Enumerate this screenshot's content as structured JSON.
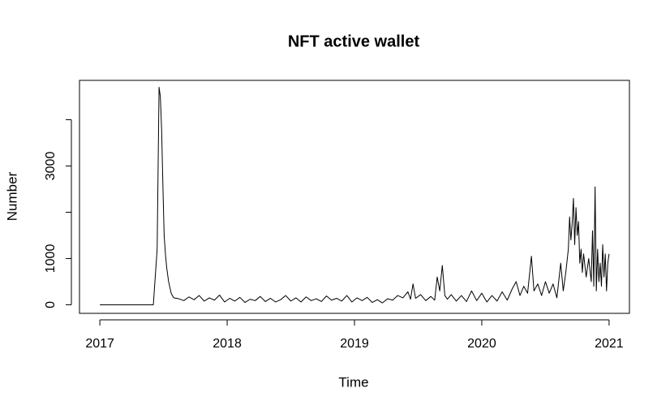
{
  "chart_data": {
    "type": "line",
    "title": "NFT active wallet",
    "x_label": "Time",
    "y_label": "Number",
    "xlim": [
      2016.84,
      2021.16
    ],
    "ylim": [
      -185,
      4850
    ],
    "xticks": [
      2017,
      2018,
      2019,
      2020,
      2021
    ],
    "yticks": [
      0,
      1000,
      {
        "value": 2000,
        "label": null
      },
      3000,
      {
        "value": 4000,
        "label": null
      }
    ],
    "grid": false,
    "series": [
      {
        "color": "#000000",
        "x": [
          2017.0,
          2017.42,
          2017.45,
          2017.465,
          2017.475,
          2017.485,
          2017.495,
          2017.505,
          2017.515,
          2017.525,
          2017.54,
          2017.56,
          2017.58,
          2017.62,
          2017.66,
          2017.7,
          2017.74,
          2017.78,
          2017.82,
          2017.86,
          2017.9,
          2017.94,
          2017.98,
          2018.02,
          2018.06,
          2018.1,
          2018.14,
          2018.18,
          2018.22,
          2018.26,
          2018.3,
          2018.34,
          2018.38,
          2018.42,
          2018.46,
          2018.5,
          2018.54,
          2018.58,
          2018.62,
          2018.66,
          2018.7,
          2018.74,
          2018.78,
          2018.82,
          2018.86,
          2018.9,
          2018.94,
          2018.98,
          2019.02,
          2019.06,
          2019.1,
          2019.14,
          2019.18,
          2019.22,
          2019.26,
          2019.3,
          2019.34,
          2019.38,
          2019.42,
          2019.44,
          2019.46,
          2019.48,
          2019.52,
          2019.56,
          2019.6,
          2019.63,
          2019.65,
          2019.67,
          2019.69,
          2019.71,
          2019.73,
          2019.76,
          2019.8,
          2019.84,
          2019.88,
          2019.92,
          2019.96,
          2020.0,
          2020.04,
          2020.08,
          2020.12,
          2020.16,
          2020.2,
          2020.24,
          2020.27,
          2020.3,
          2020.33,
          2020.36,
          2020.39,
          2020.41,
          2020.44,
          2020.47,
          2020.5,
          2020.53,
          2020.56,
          2020.59,
          2020.62,
          2020.64,
          2020.66,
          2020.68,
          2020.69,
          2020.7,
          2020.71,
          2020.72,
          2020.73,
          2020.74,
          2020.75,
          2020.76,
          2020.77,
          2020.78,
          2020.79,
          2020.8,
          2020.82,
          2020.84,
          2020.86,
          2020.87,
          2020.88,
          2020.89,
          2020.9,
          2020.91,
          2020.92,
          2020.93,
          2020.94,
          2020.95,
          2020.96,
          2020.97,
          2020.98,
          2020.99,
          2021.0
        ],
        "values": [
          0,
          0,
          1200,
          4700,
          4500,
          3800,
          2600,
          1500,
          1100,
          800,
          500,
          250,
          150,
          130,
          90,
          170,
          110,
          200,
          80,
          150,
          100,
          210,
          60,
          140,
          80,
          160,
          50,
          120,
          90,
          180,
          70,
          140,
          60,
          110,
          200,
          80,
          150,
          60,
          170,
          90,
          130,
          70,
          190,
          100,
          140,
          80,
          200,
          60,
          150,
          90,
          160,
          50,
          110,
          40,
          130,
          100,
          200,
          150,
          280,
          120,
          450,
          140,
          220,
          90,
          180,
          100,
          600,
          300,
          850,
          200,
          120,
          220,
          80,
          200,
          70,
          300,
          90,
          250,
          60,
          200,
          80,
          280,
          100,
          350,
          500,
          200,
          400,
          250,
          1050,
          300,
          450,
          200,
          500,
          250,
          450,
          150,
          900,
          300,
          700,
          1200,
          1900,
          1400,
          1750,
          2300,
          1300,
          2100,
          1500,
          1800,
          900,
          1200,
          700,
          1100,
          600,
          1000,
          500,
          1600,
          400,
          2550,
          300,
          1200,
          500,
          900,
          400,
          1300,
          600,
          1100,
          300,
          900,
          1100
        ]
      }
    ]
  }
}
